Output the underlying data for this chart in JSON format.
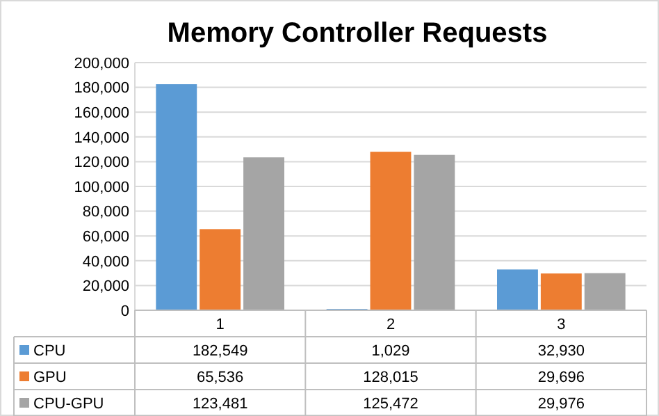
{
  "chart_data": {
    "type": "bar",
    "title": "Memory Controller Requests",
    "categories": [
      "1",
      "2",
      "3"
    ],
    "series": [
      {
        "name": "CPU",
        "color": "#5b9bd5",
        "values": [
          182549,
          1029,
          32930
        ],
        "value_labels": [
          "182,549",
          "1,029",
          "32,930"
        ]
      },
      {
        "name": "GPU",
        "color": "#ed7d31",
        "values": [
          65536,
          128015,
          29696
        ],
        "value_labels": [
          "65,536",
          "128,015",
          "29,696"
        ]
      },
      {
        "name": "CPU-GPU",
        "color": "#a5a5a5",
        "values": [
          123481,
          125472,
          29976
        ],
        "value_labels": [
          "123,481",
          "125,472",
          "29,976"
        ]
      }
    ],
    "ylim": [
      0,
      200000
    ],
    "yticks": [
      {
        "value": 0,
        "label": "0"
      },
      {
        "value": 20000,
        "label": "20,000"
      },
      {
        "value": 40000,
        "label": "40,000"
      },
      {
        "value": 60000,
        "label": "60,000"
      },
      {
        "value": 80000,
        "label": "80,000"
      },
      {
        "value": 100000,
        "label": "100,000"
      },
      {
        "value": 120000,
        "label": "120,000"
      },
      {
        "value": 140000,
        "label": "140,000"
      },
      {
        "value": 160000,
        "label": "160,000"
      },
      {
        "value": 180000,
        "label": "180,000"
      },
      {
        "value": 200000,
        "label": "200,000"
      }
    ],
    "grid": "y",
    "legend": "bottom"
  }
}
